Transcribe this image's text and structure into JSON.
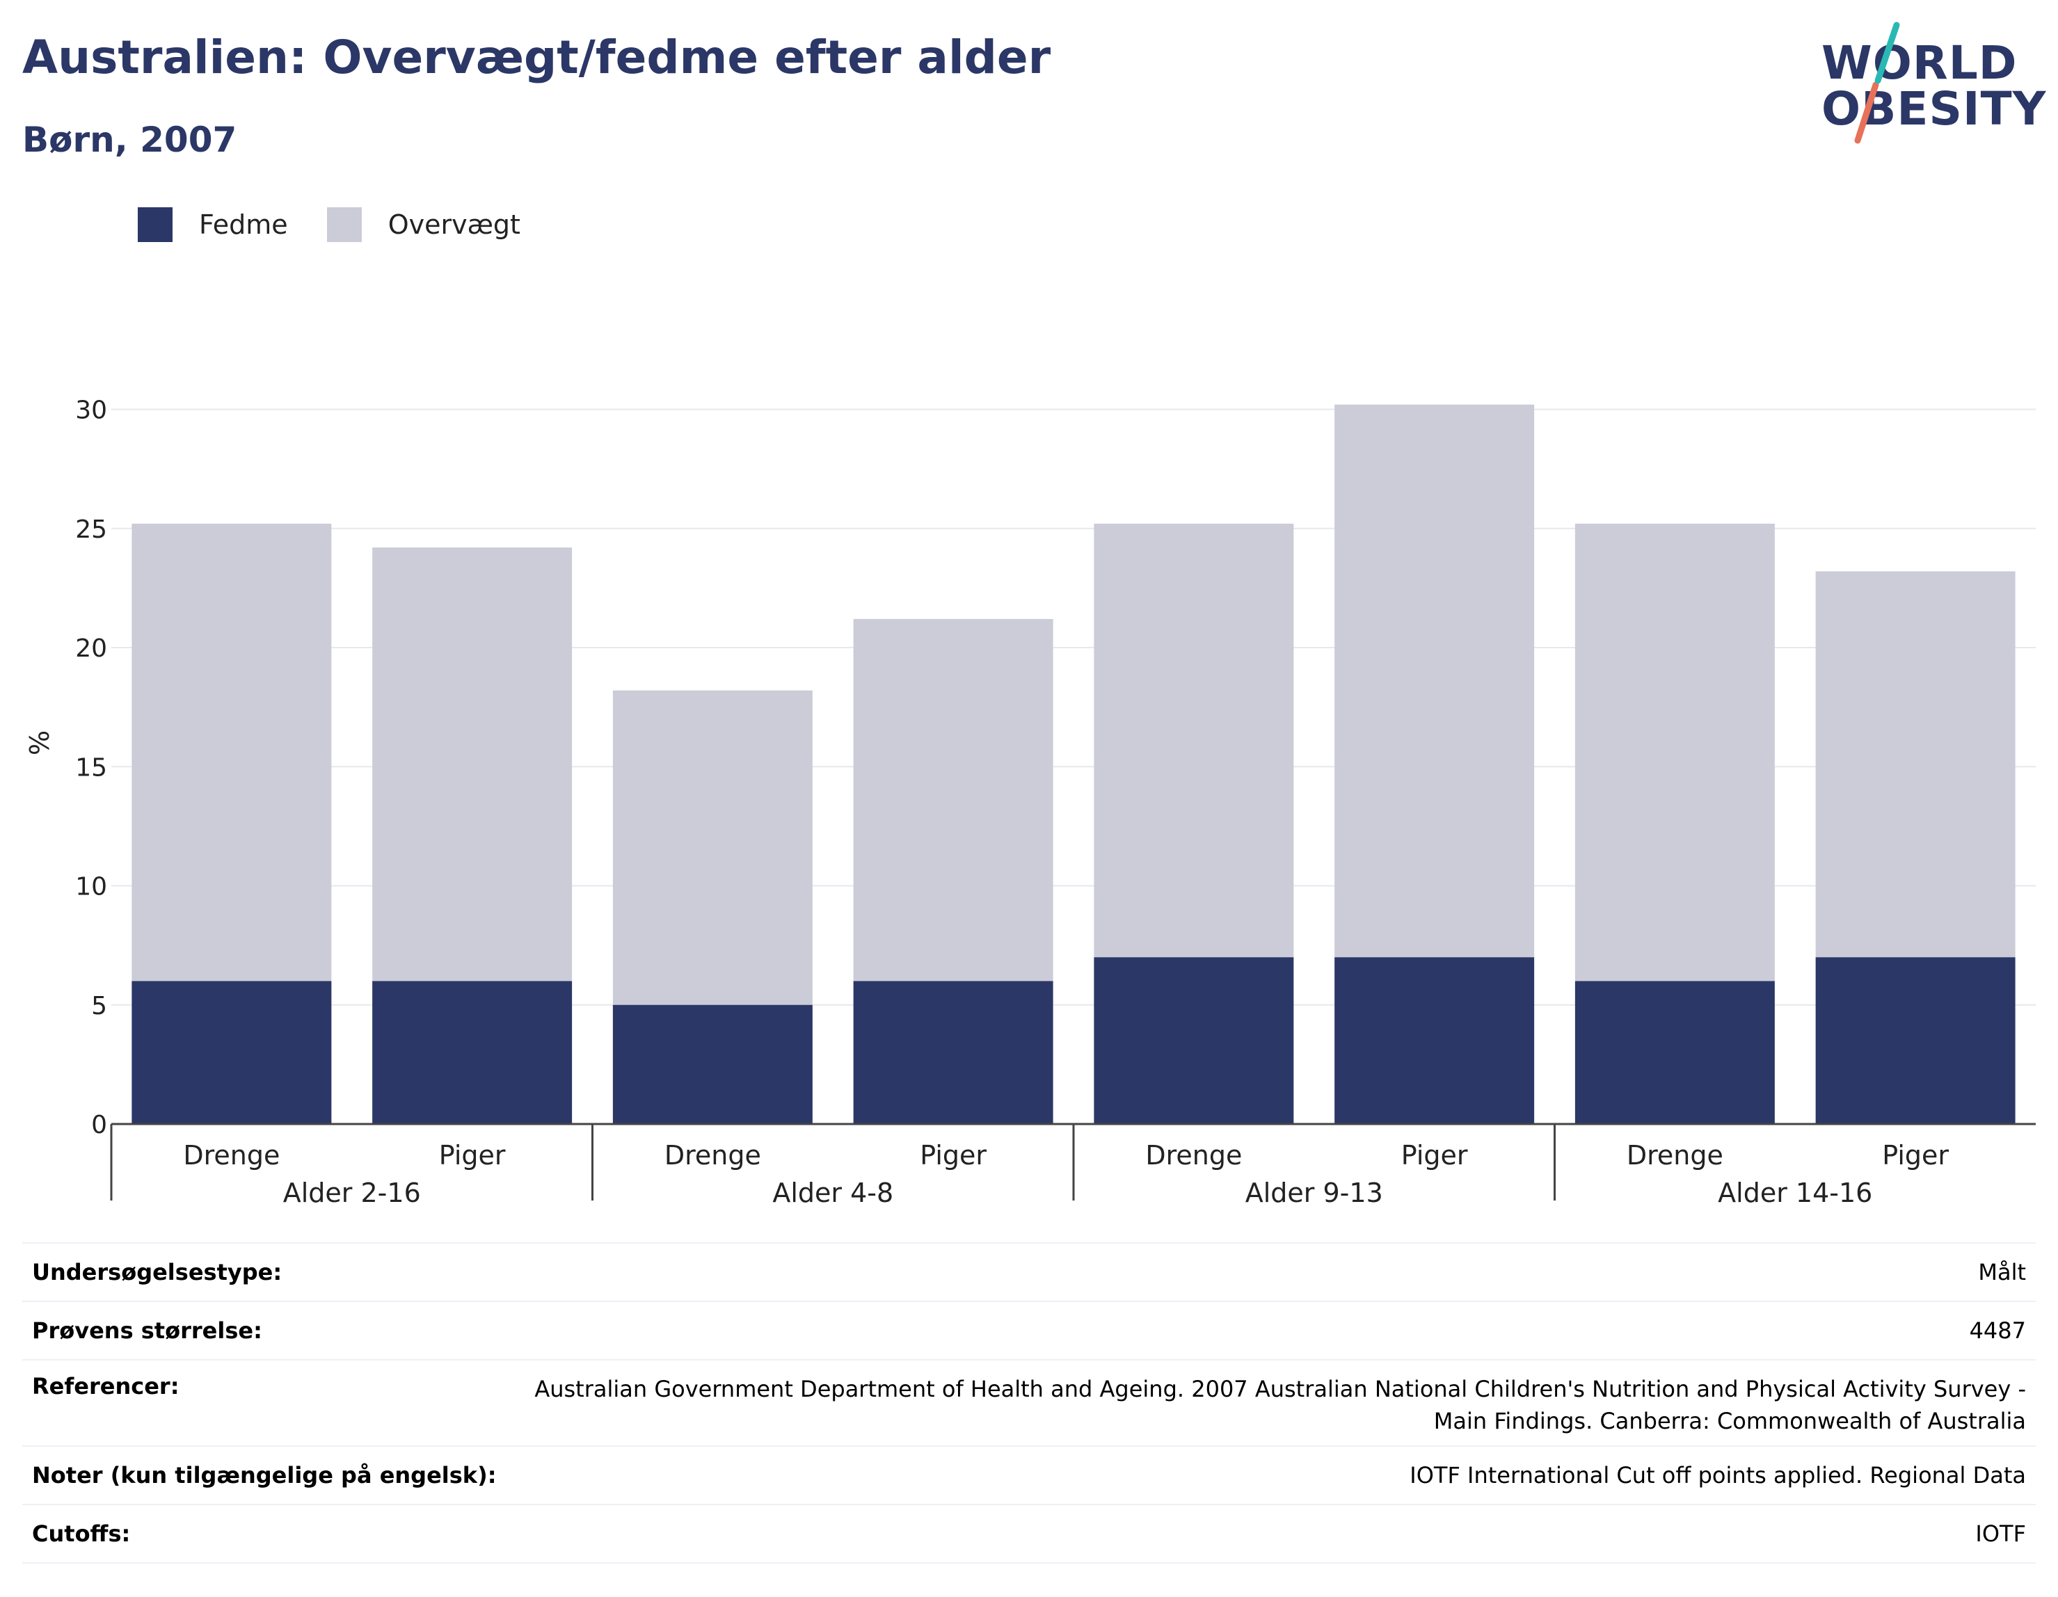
{
  "title": "Australien: Overvægt/fedme efter alder",
  "subtitle": "Børn, 2007",
  "logo": {
    "line1": "WORLD",
    "line2": "OBESITY",
    "accent_colors": [
      "#2ab8b4",
      "#e8715a"
    ]
  },
  "colors": {
    "fedme": "#2b3766",
    "overvaegt": "#cbccd8",
    "text_dark": "#2b3766",
    "grid": "#e6e8ee"
  },
  "legend": [
    {
      "label": "Fedme",
      "color": "#2b3766"
    },
    {
      "label": "Overvægt",
      "color": "#cbccd8"
    }
  ],
  "chart_data": {
    "type": "bar",
    "stacked": true,
    "ylabel": "%",
    "ylim": [
      0,
      32
    ],
    "yticks": [
      0,
      5,
      10,
      15,
      20,
      25,
      30
    ],
    "groups": [
      "Alder 2-16",
      "Alder 4-8",
      "Alder 9-13",
      "Alder 14-16"
    ],
    "categories": [
      "Drenge",
      "Piger",
      "Drenge",
      "Piger",
      "Drenge",
      "Piger",
      "Drenge",
      "Piger"
    ],
    "series": [
      {
        "name": "Fedme",
        "values": [
          6,
          6,
          5,
          6,
          7,
          7,
          6,
          7
        ]
      },
      {
        "name": "Overvægt",
        "values": [
          19.2,
          18.2,
          13.2,
          15.2,
          18.2,
          23.2,
          19.2,
          16.2
        ]
      }
    ],
    "totals": [
      25.2,
      24.2,
      18.2,
      21.2,
      25.2,
      30.2,
      25.2,
      23.2
    ],
    "grid": true,
    "legend_position": "top-left"
  },
  "info": [
    {
      "label": "Undersøgelsestype:",
      "value": "Målt"
    },
    {
      "label": "Prøvens størrelse:",
      "value": "4487"
    },
    {
      "label": "Referencer:",
      "value_lines": [
        "Australian Government Department of Health and Ageing. 2007 Australian National Children's Nutrition and Physical Activity Survey -",
        "Main Findings. Canberra: Commonwealth of Australia"
      ]
    },
    {
      "label": "Noter (kun tilgængelige på engelsk):",
      "value": "IOTF International Cut off points applied. Regional Data"
    },
    {
      "label": "Cutoffs:",
      "value": "IOTF"
    }
  ]
}
